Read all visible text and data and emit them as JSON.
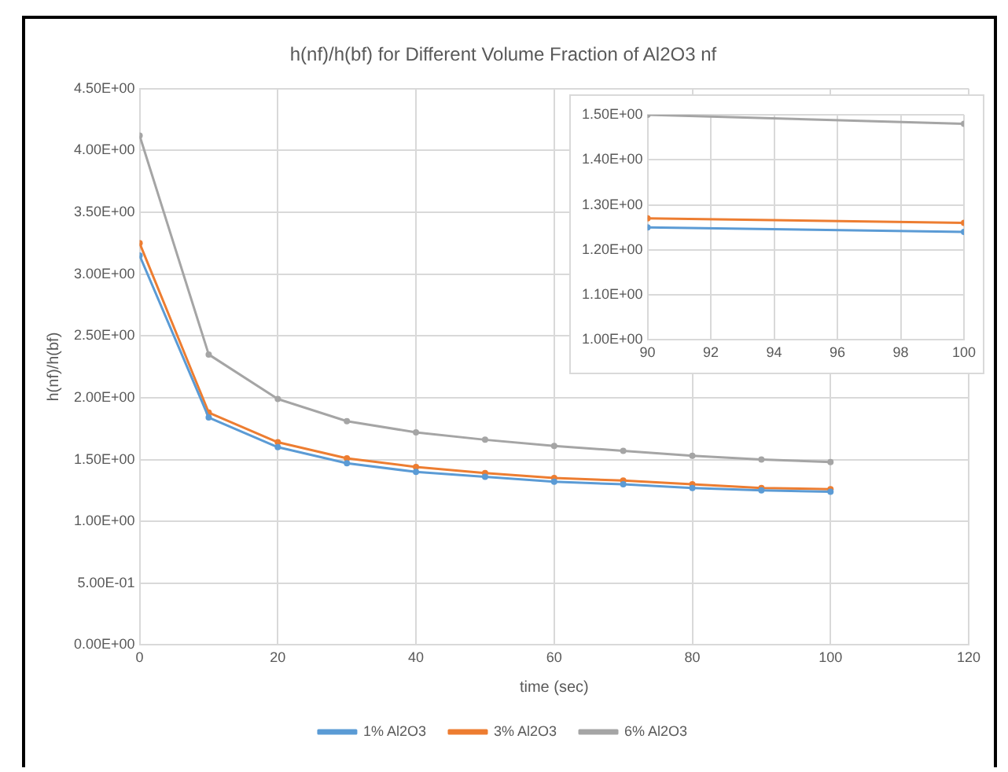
{
  "chart_data": [
    {
      "type": "line",
      "title": "h(nf)/h(bf) for Different Volume Fraction of Al2O3 nf",
      "xlabel": "time (sec)",
      "ylabel": "h(nf)/h(bf)",
      "x": [
        0,
        10,
        20,
        30,
        40,
        50,
        60,
        70,
        80,
        90,
        100
      ],
      "series": [
        {
          "name": "1% Al2O3",
          "color": "#5b9bd5",
          "values": [
            3.15,
            1.84,
            1.6,
            1.47,
            1.4,
            1.36,
            1.32,
            1.3,
            1.27,
            1.25,
            1.24
          ]
        },
        {
          "name": "3% Al2O3",
          "color": "#ed7d31",
          "values": [
            3.25,
            1.88,
            1.64,
            1.51,
            1.44,
            1.39,
            1.35,
            1.33,
            1.3,
            1.27,
            1.26
          ]
        },
        {
          "name": "6% Al2O3",
          "color": "#a5a5a5",
          "values": [
            4.12,
            2.35,
            1.99,
            1.81,
            1.72,
            1.66,
            1.61,
            1.57,
            1.53,
            1.5,
            1.48
          ]
        }
      ],
      "xlim": [
        0,
        120
      ],
      "xticks": [
        0,
        20,
        40,
        60,
        80,
        100,
        120
      ],
      "ylim": [
        0,
        4.5
      ],
      "yticks": [
        {
          "value": 0,
          "label": "0.00E+00"
        },
        {
          "value": 0.5,
          "label": "5.00E-01"
        },
        {
          "value": 1,
          "label": "1.00E+00"
        },
        {
          "value": 1.5,
          "label": "1.50E+00"
        },
        {
          "value": 2,
          "label": "2.00E+00"
        },
        {
          "value": 2.5,
          "label": "2.50E+00"
        },
        {
          "value": 3,
          "label": "3.00E+00"
        },
        {
          "value": 3.5,
          "label": "3.50E+00"
        },
        {
          "value": 4,
          "label": "4.00E+00"
        },
        {
          "value": 4.5,
          "label": "4.50E+00"
        }
      ],
      "grid": true,
      "legend": "bottom",
      "marker": "circle",
      "line_style": "solid"
    },
    {
      "type": "line",
      "x": [
        90,
        100
      ],
      "series": [
        {
          "color": "#5b9bd5",
          "values": [
            1.25,
            1.24
          ]
        },
        {
          "color": "#ed7d31",
          "values": [
            1.27,
            1.26
          ]
        },
        {
          "color": "#a5a5a5",
          "values": [
            1.5,
            1.48
          ]
        }
      ],
      "xlim": [
        90,
        100
      ],
      "xticks": [
        90,
        92,
        94,
        96,
        98,
        100
      ],
      "ylim": [
        1,
        1.5
      ],
      "yticks": [
        {
          "value": 1,
          "label": "1.00E+00"
        },
        {
          "value": 1.1,
          "label": "1.10E+00"
        },
        {
          "value": 1.2,
          "label": "1.20E+00"
        },
        {
          "value": 1.3,
          "label": "1.30E+00"
        },
        {
          "value": 1.4,
          "label": "1.40E+00"
        },
        {
          "value": 1.5,
          "label": "1.50E+00"
        }
      ],
      "grid": true,
      "marker": "circle",
      "line_style": "solid"
    }
  ]
}
